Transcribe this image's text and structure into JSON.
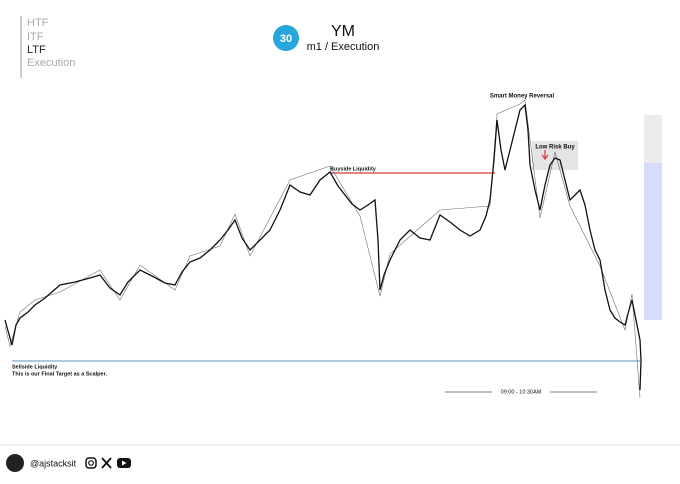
{
  "header": {
    "timeframes": [
      "HTF",
      "ITF",
      "LTF",
      "Execution"
    ],
    "badge": "30",
    "title": "YM",
    "subtitle": "m1 / Execution"
  },
  "annotations": {
    "reversal": "Smart Money Reversal",
    "entry": "Low Risk Buy",
    "buyside": "Buyside Liquidity",
    "sellside": "Sellside Liquidity",
    "target": "This is our Final Target as a Scalper.",
    "session": "09:00 - 10:30AM"
  },
  "footer": {
    "handle": "@ajstacksit"
  }
}
